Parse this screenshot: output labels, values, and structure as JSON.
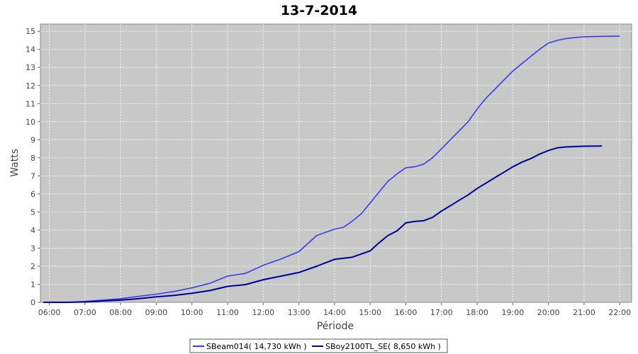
{
  "chart_data": {
    "type": "line",
    "title": "13-7-2014",
    "xlabel": "Période",
    "ylabel": "Watts",
    "xlim": [
      "05:45",
      "22:20"
    ],
    "ylim": [
      0,
      15.4
    ],
    "x_ticks": [
      "06:00",
      "07:00",
      "08:00",
      "09:00",
      "10:00",
      "11:00",
      "12:00",
      "13:00",
      "14:00",
      "15:00",
      "16:00",
      "17:00",
      "18:00",
      "19:00",
      "20:00",
      "21:00",
      "22:00"
    ],
    "y_ticks": [
      0,
      1,
      2,
      3,
      4,
      5,
      6,
      7,
      8,
      9,
      10,
      11,
      12,
      13,
      14,
      15
    ],
    "grid": true,
    "plot_background": "#c8c8c8",
    "grid_color": "#ffffff",
    "legend_position": "bottom-center",
    "series": [
      {
        "name": "SBeam014( 14,730 kWh )",
        "color": "#3a3af0",
        "x": [
          "05:50",
          "06:30",
          "07:00",
          "07:30",
          "08:00",
          "08:30",
          "09:00",
          "09:30",
          "10:00",
          "10:30",
          "11:00",
          "11:30",
          "12:00",
          "12:30",
          "13:00",
          "13:30",
          "14:00",
          "14:15",
          "14:30",
          "14:45",
          "15:00",
          "15:15",
          "15:30",
          "15:45",
          "16:00",
          "16:15",
          "16:30",
          "16:45",
          "17:00",
          "17:15",
          "17:30",
          "17:45",
          "18:00",
          "18:15",
          "18:30",
          "18:45",
          "19:00",
          "19:15",
          "19:30",
          "19:45",
          "20:00",
          "20:15",
          "20:30",
          "20:45",
          "21:00",
          "21:30",
          "22:00"
        ],
        "values": [
          0,
          0,
          0.05,
          0.12,
          0.2,
          0.33,
          0.45,
          0.6,
          0.8,
          1.05,
          1.45,
          1.6,
          2.05,
          2.4,
          2.8,
          3.7,
          4.05,
          4.15,
          4.5,
          4.9,
          5.5,
          6.1,
          6.7,
          7.1,
          7.45,
          7.5,
          7.65,
          8.0,
          8.5,
          9.0,
          9.5,
          10.0,
          10.7,
          11.3,
          11.8,
          12.3,
          12.8,
          13.2,
          13.6,
          14.0,
          14.35,
          14.5,
          14.6,
          14.65,
          14.7,
          14.72,
          14.73
        ]
      },
      {
        "name": "SBoy2100TL_SE( 8,650 kWh )",
        "color": "#000099",
        "x": [
          "05:50",
          "06:30",
          "07:00",
          "07:30",
          "08:00",
          "08:30",
          "09:00",
          "09:30",
          "10:00",
          "10:30",
          "11:00",
          "11:30",
          "12:00",
          "12:30",
          "13:00",
          "13:30",
          "14:00",
          "14:30",
          "15:00",
          "15:15",
          "15:30",
          "15:45",
          "16:00",
          "16:15",
          "16:30",
          "16:45",
          "17:00",
          "17:15",
          "17:30",
          "17:45",
          "18:00",
          "18:15",
          "18:30",
          "18:45",
          "19:00",
          "19:15",
          "19:30",
          "19:45",
          "20:00",
          "20:15",
          "20:30",
          "20:45",
          "21:00",
          "21:30"
        ],
        "values": [
          0,
          0,
          0.02,
          0.08,
          0.12,
          0.2,
          0.3,
          0.38,
          0.5,
          0.65,
          0.88,
          0.98,
          1.25,
          1.45,
          1.65,
          2.0,
          2.38,
          2.5,
          2.85,
          3.3,
          3.7,
          3.95,
          4.4,
          4.48,
          4.52,
          4.7,
          5.05,
          5.35,
          5.65,
          5.95,
          6.3,
          6.6,
          6.9,
          7.2,
          7.5,
          7.75,
          7.95,
          8.2,
          8.4,
          8.55,
          8.6,
          8.62,
          8.64,
          8.65
        ]
      }
    ]
  }
}
